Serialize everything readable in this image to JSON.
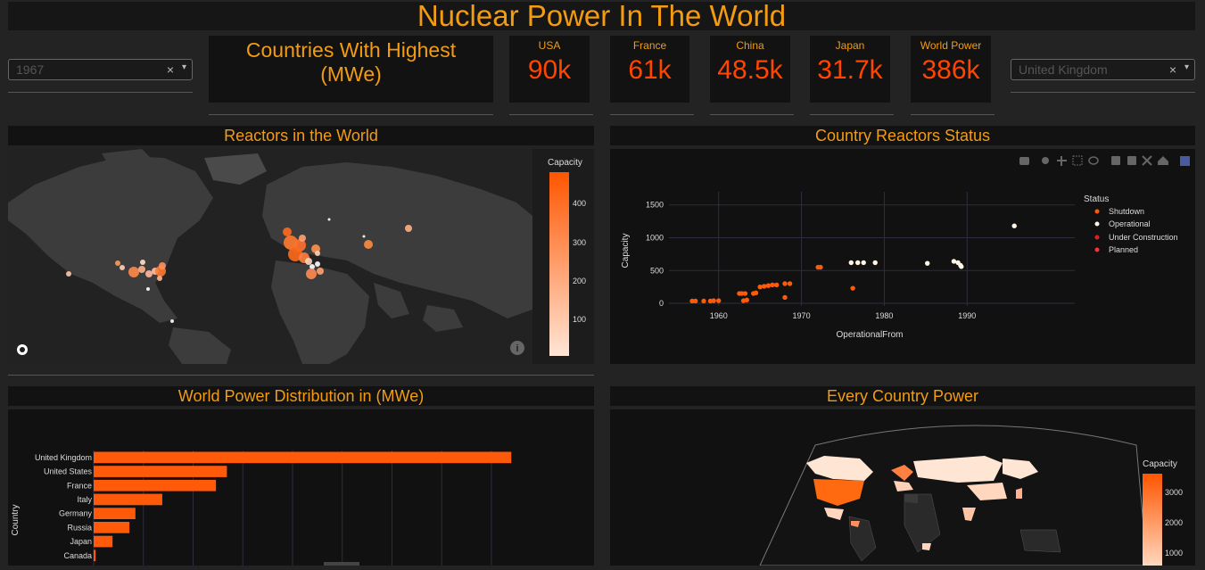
{
  "title": "Nuclear Power In The World",
  "year_dropdown": {
    "value": "1967",
    "clear": "×",
    "caret": "▾"
  },
  "country_dropdown": {
    "value": "United Kingdom",
    "clear": "×",
    "caret": "▾"
  },
  "highest_card": {
    "line1": "Countries With Highest",
    "line2": "(MWe)"
  },
  "kpis": [
    {
      "label": "USA",
      "value": "90k"
    },
    {
      "label": "France",
      "value": "61k"
    },
    {
      "label": "China",
      "value": "48.5k"
    },
    {
      "label": "Japan",
      "value": "31.7k"
    },
    {
      "label": "World Power",
      "value": "386k"
    }
  ],
  "headers": {
    "reactors_world": "Reactors in the World",
    "country_status": "Country Reactors Status",
    "distribution": "World Power Distribution in (MWe)",
    "every_country": "Every Country Power"
  },
  "colors": {
    "accent": "#f39c12",
    "kpi": "#ff4500",
    "bar": "#ff5a0a"
  },
  "map_colorbar": {
    "title": "Capacity",
    "ticks": [
      "400",
      "300",
      "200",
      "100"
    ]
  },
  "choropleth_colorbar": {
    "title": "Capacity",
    "ticks": [
      "3000",
      "2000",
      "1000"
    ]
  },
  "map_icons": {
    "logo": "plotly-logo-icon",
    "info": "info-icon"
  },
  "toolbar_icons": [
    "camera-icon",
    "zoom-icon",
    "pan-icon",
    "box-select-icon",
    "lasso-icon",
    "zoom-in-icon",
    "zoom-out-icon",
    "autoscale-icon",
    "reset-icon",
    "plotly-logo-icon"
  ],
  "chart_data": [
    {
      "type": "scatter",
      "title": "",
      "xlabel": "OperationalFrom",
      "ylabel": "Capacity",
      "xlim": [
        1954,
        2003
      ],
      "ylim": [
        -40,
        1700
      ],
      "x_ticks": [
        "1960",
        "1970",
        "1980",
        "1990"
      ],
      "y_ticks": [
        "0",
        "500",
        "1000",
        "1500"
      ],
      "grid": true,
      "legend_title": "Status",
      "legend_position": "right",
      "series": [
        {
          "name": "Shutdown",
          "color": "#ff5a0a",
          "points": [
            [
              1956.8,
              35
            ],
            [
              1957.2,
              35
            ],
            [
              1958.2,
              35
            ],
            [
              1959.0,
              35
            ],
            [
              1959.4,
              40
            ],
            [
              1960.0,
              40
            ],
            [
              1962.5,
              150
            ],
            [
              1962.8,
              150
            ],
            [
              1963.0,
              40
            ],
            [
              1963.2,
              150
            ],
            [
              1963.4,
              50
            ],
            [
              1964.2,
              150
            ],
            [
              1964.5,
              160
            ],
            [
              1965.0,
              250
            ],
            [
              1965.5,
              260
            ],
            [
              1966.0,
              270
            ],
            [
              1966.5,
              280
            ],
            [
              1967.0,
              280
            ],
            [
              1968.0,
              300
            ],
            [
              1968.0,
              90
            ],
            [
              1968.6,
              300
            ],
            [
              1972.0,
              550
            ],
            [
              1972.3,
              550
            ],
            [
              1976.2,
              230
            ]
          ]
        },
        {
          "name": "Operational",
          "color": "#fff5e6",
          "points": [
            [
              1976.0,
              620
            ],
            [
              1976.8,
              620
            ],
            [
              1977.5,
              620
            ],
            [
              1978.9,
              620
            ],
            [
              1985.2,
              610
            ],
            [
              1988.4,
              640
            ],
            [
              1988.9,
              620
            ],
            [
              1989.2,
              580
            ],
            [
              1989.3,
              560
            ],
            [
              1995.7,
              1180
            ]
          ]
        },
        {
          "name": "Under Construction",
          "color": "#e02020",
          "points": []
        },
        {
          "name": "Planned",
          "color": "#ff3030",
          "points": []
        }
      ]
    },
    {
      "type": "bar",
      "orientation": "horizontal",
      "title": "",
      "xlabel": "",
      "ylabel": "Country",
      "xlim": [
        0,
        4700
      ],
      "categories": [
        "United Kingdom",
        "United States",
        "France",
        "Italy",
        "Germany",
        "Russia",
        "Japan",
        "Canada"
      ],
      "values": [
        4200,
        1340,
        1230,
        690,
        420,
        360,
        190,
        20
      ],
      "grid": true
    }
  ]
}
